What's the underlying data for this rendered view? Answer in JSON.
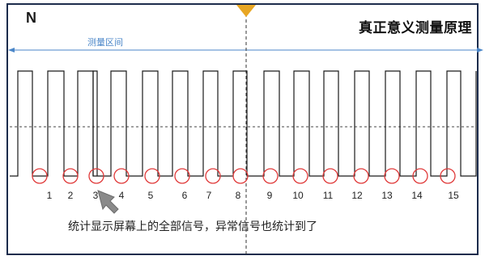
{
  "diagram": {
    "corner_label": "N",
    "title": "真正意义测量原理",
    "range_label": "测量区间",
    "pulse_labels": [
      "1",
      "2",
      "3",
      "4",
      "5",
      "6",
      "7",
      "8",
      "9",
      "10",
      "11",
      "12",
      "13",
      "14",
      "15"
    ],
    "caption": "统计显示屏幕上的全部信号，异常信号也统计到了",
    "colors": {
      "frame": "#1c2c4c",
      "range_arrow": "#4a86c8",
      "signal": "#1a1a1a",
      "circle": "#e03a3a",
      "center_marker": "#e8a623",
      "pointer": "#8a8a8a"
    }
  }
}
